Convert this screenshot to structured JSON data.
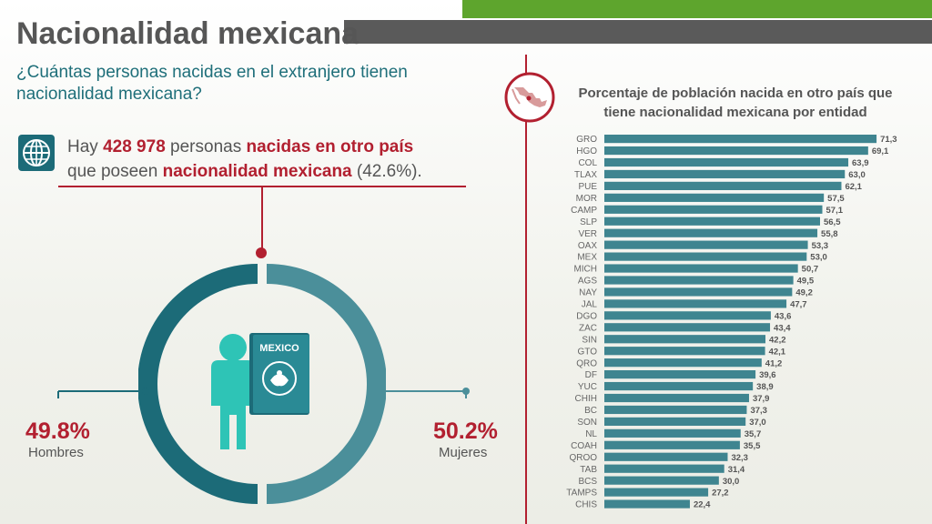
{
  "header": {
    "title": "Nacionalidad mexicana",
    "subtitle": "¿Cuántas personas nacidas en el extranjero tienen nacionalidad mexicana?"
  },
  "stat": {
    "pre": "Hay ",
    "count": "428 978",
    "mid": " personas ",
    "born": "nacidas en otro país",
    "line2_pre": "que poseen ",
    "nationality": "nacionalidad mexicana",
    "pct": " (42.6%)."
  },
  "card": {
    "label": "MEXICO"
  },
  "gender": {
    "hombres_pct": "49.8%",
    "hombres_label": "Hombres",
    "mujeres_pct": "50.2%",
    "mujeres_label": "Mujeres"
  },
  "colors": {
    "red": "#b22030",
    "teal_dark": "#1c6b78",
    "teal_light": "#4b8f9a",
    "bar": "#3f8590",
    "green": "#5ea52d"
  },
  "icons": [
    "globe-icon",
    "person-icon",
    "passport-icon",
    "mexico-map-icon"
  ],
  "chart_data": [
    {
      "type": "pie",
      "categories": [
        "Hombres",
        "Mujeres"
      ],
      "values": [
        49.8,
        50.2
      ]
    },
    {
      "type": "bar",
      "orientation": "horizontal",
      "title": "Porcentaje de población nacida en otro país que tiene nacionalidad mexicana por entidad",
      "categories": [
        "GRO",
        "HGO",
        "COL",
        "TLAX",
        "PUE",
        "MOR",
        "CAMP",
        "SLP",
        "VER",
        "OAX",
        "MEX",
        "MICH",
        "AGS",
        "NAY",
        "JAL",
        "DGO",
        "ZAC",
        "SIN",
        "GTO",
        "QRO",
        "DF",
        "YUC",
        "CHIH",
        "BC",
        "SON",
        "NL",
        "COAH",
        "QROO",
        "TAB",
        "BCS",
        "TAMPS",
        "CHIS"
      ],
      "values": [
        71.3,
        69.1,
        63.9,
        63.0,
        62.1,
        57.5,
        57.1,
        56.5,
        55.8,
        53.3,
        53.0,
        50.7,
        49.5,
        49.2,
        47.7,
        43.6,
        43.4,
        42.2,
        42.1,
        41.2,
        39.6,
        38.9,
        37.9,
        37.3,
        37.0,
        35.7,
        35.5,
        32.3,
        31.4,
        30.0,
        27.2,
        22.4
      ],
      "value_labels": [
        "71,3",
        "69,1",
        "63,9",
        "63,0",
        "62,1",
        "57,5",
        "57,1",
        "56,5",
        "55,8",
        "53,3",
        "53,0",
        "50,7",
        "49,5",
        "49,2",
        "47,7",
        "43,6",
        "43,4",
        "42,2",
        "42,1",
        "41,2",
        "39,6",
        "38,9",
        "37,9",
        "37,3",
        "37,0",
        "35,7",
        "35,5",
        "32,3",
        "31,4",
        "30,0",
        "27,2",
        "22,4"
      ],
      "xlim": [
        0,
        72
      ]
    }
  ]
}
